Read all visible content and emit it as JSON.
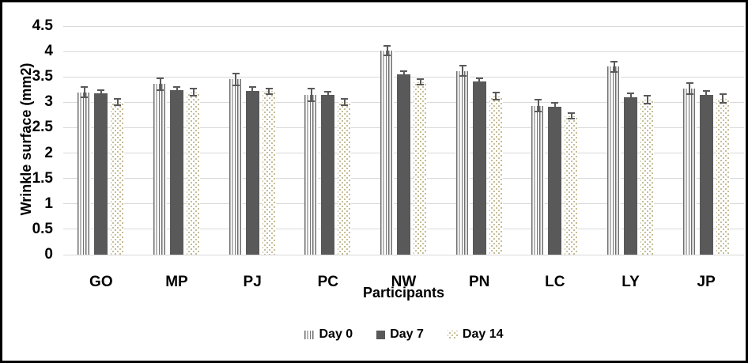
{
  "chart_data": {
    "type": "bar",
    "title": "",
    "xlabel": "Participants",
    "ylabel": "Wrinkle surface (mm2)",
    "categories": [
      "GO",
      "MP",
      "PJ",
      "PC",
      "NW",
      "PN",
      "LC",
      "LY",
      "JP"
    ],
    "series": [
      {
        "name": "Day 0",
        "pattern": "stripes",
        "color": "#6f6f6f",
        "values": [
          3.2,
          3.36,
          3.45,
          3.15,
          4.02,
          3.62,
          2.93,
          3.7,
          3.27
        ],
        "errors": [
          0.11,
          0.13,
          0.13,
          0.14,
          0.11,
          0.12,
          0.13,
          0.12,
          0.12
        ]
      },
      {
        "name": "Day 7",
        "pattern": "solid",
        "color": "#595959",
        "values": [
          3.17,
          3.24,
          3.23,
          3.14,
          3.55,
          3.41,
          2.91,
          3.1,
          3.14
        ],
        "errors": [
          0.08,
          0.07,
          0.08,
          0.08,
          0.08,
          0.08,
          0.09,
          0.09,
          0.1
        ]
      },
      {
        "name": "Day 14",
        "pattern": "dots",
        "color": "#c5bd96",
        "values": [
          3.0,
          3.2,
          3.22,
          3.0,
          3.4,
          3.12,
          2.73,
          3.05,
          3.07
        ],
        "errors": [
          0.08,
          0.08,
          0.07,
          0.08,
          0.07,
          0.09,
          0.07,
          0.09,
          0.1
        ]
      }
    ],
    "ylim": [
      0,
      4.5
    ],
    "ytick_step": 0.5,
    "ytick_labels": [
      "0",
      "0.5",
      "1",
      "1.5",
      "2",
      "2.5",
      "3",
      "3.5",
      "4",
      "4.5"
    ],
    "grid": true,
    "legend_position": "bottom-center",
    "error_bars": true,
    "colors": {
      "gridline": "#d9d9d9",
      "error_bar": "#595959",
      "text": "#000000",
      "frame_border": "#000000",
      "background": "#ffffff"
    }
  }
}
